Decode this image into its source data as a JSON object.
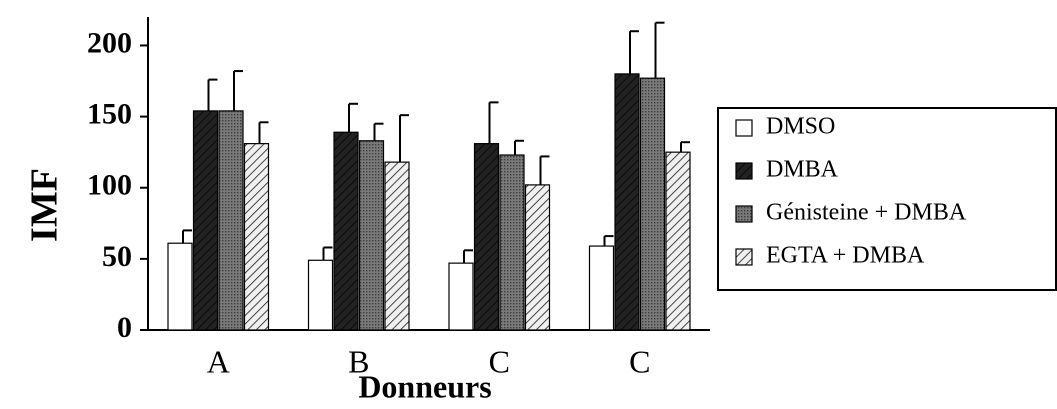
{
  "chart_data": {
    "type": "bar",
    "y_label": "IMF",
    "x_label": "Donneurs",
    "categories": [
      "A",
      "B",
      "C",
      "C"
    ],
    "series": [
      {
        "name": "DMSO",
        "color": "#ffffff",
        "pattern": "solid",
        "values": [
          61,
          49,
          47,
          59
        ],
        "errors": [
          9,
          9,
          9,
          7
        ]
      },
      {
        "name": "DMBA",
        "color": "#222222",
        "pattern": "hatch",
        "values": [
          154,
          139,
          131,
          180
        ],
        "errors": [
          22,
          20,
          29,
          30
        ]
      },
      {
        "name": "Génisteine + DMBA",
        "color": "#7a7a7a",
        "pattern": "dots",
        "values": [
          154,
          133,
          123,
          177
        ],
        "errors": [
          28,
          12,
          10,
          39
        ]
      },
      {
        "name": "EGTA + DMBA",
        "color": "#f0f0f0",
        "pattern": "hatch",
        "values": [
          131,
          118,
          102,
          125
        ],
        "errors": [
          15,
          33,
          20,
          7
        ]
      }
    ],
    "ylim": [
      0,
      220
    ],
    "yticks": [
      0,
      50,
      100,
      150,
      200
    ]
  }
}
